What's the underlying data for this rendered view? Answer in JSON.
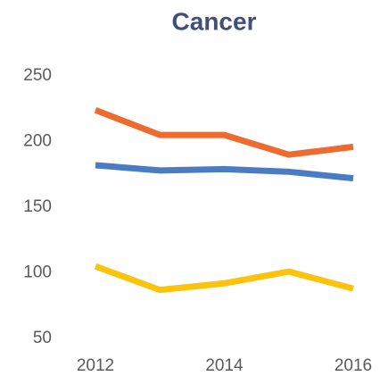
{
  "chart_data": {
    "type": "line",
    "title": "Cancer",
    "x": [
      2012,
      2013,
      2014,
      2015,
      2016
    ],
    "xlim": [
      2012,
      2016
    ],
    "xticks": [
      2012,
      2014,
      2016
    ],
    "ylim": [
      50,
      250
    ],
    "yticks": [
      50,
      100,
      150,
      200,
      250
    ],
    "grid": false,
    "series": [
      {
        "color": "#ed6b2f",
        "values": [
          224,
          205,
          205,
          190,
          196
        ]
      },
      {
        "color": "#4a7cc4",
        "values": [
          182,
          178,
          179,
          177,
          172
        ]
      },
      {
        "color": "#fcc30c",
        "values": [
          105,
          87,
          92,
          101,
          88
        ]
      }
    ]
  }
}
